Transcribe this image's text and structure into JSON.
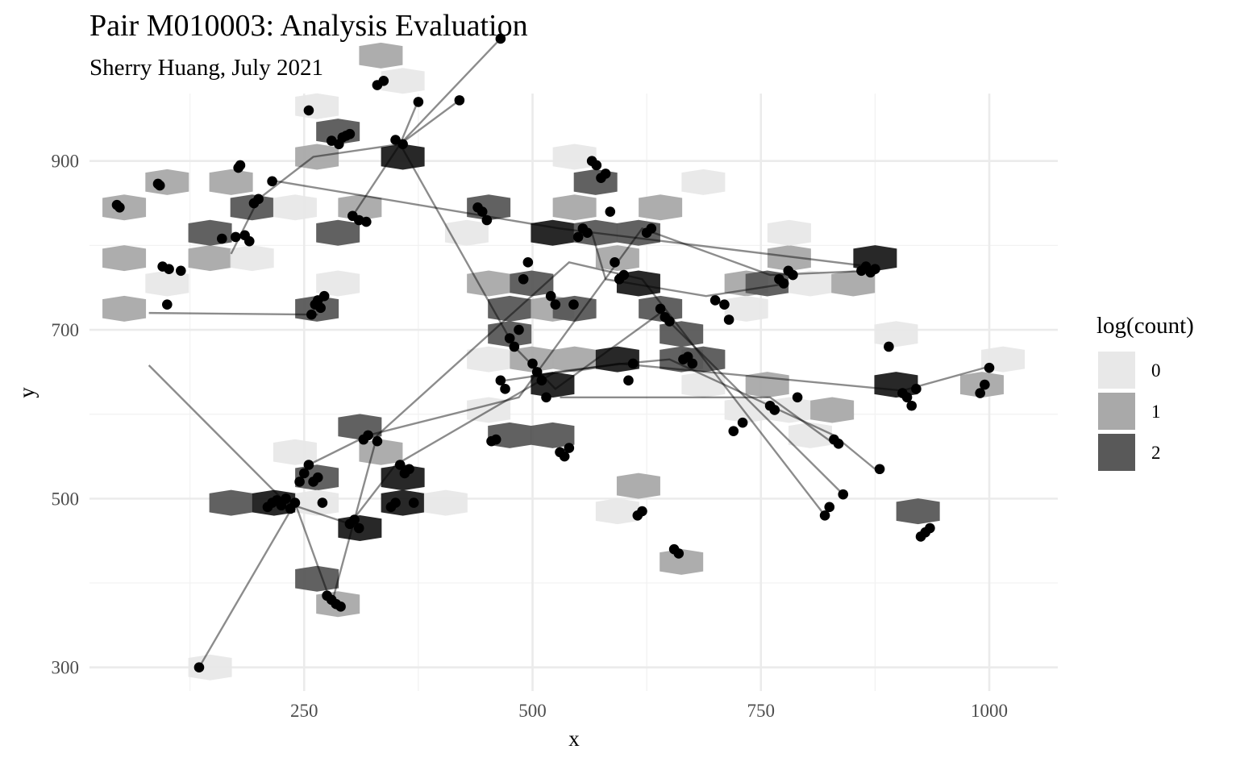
{
  "chart_data": {
    "type": "scatter",
    "title": "Pair M010003: Analysis Evaluation",
    "subtitle": "Sherry Huang, July 2021",
    "xlabel": "x",
    "ylabel": "y",
    "xlim": [
      15,
      1075
    ],
    "ylim": [
      272,
      980
    ],
    "x_ticks": [
      250,
      500,
      750,
      1000
    ],
    "y_ticks": [
      300,
      500,
      700,
      900
    ],
    "grid": true,
    "legend": {
      "title": "log(count)",
      "position": "right",
      "entries": [
        {
          "label": "0",
          "color": "#e8e8e8"
        },
        {
          "label": "1",
          "color": "#a9a9a9"
        },
        {
          "label": "2",
          "color": "#595959"
        }
      ]
    },
    "hexbins": [
      {
        "x": 53,
        "y": 725,
        "level": 1
      },
      {
        "x": 53,
        "y": 785,
        "level": 1
      },
      {
        "x": 53,
        "y": 845,
        "level": 1
      },
      {
        "x": 100,
        "y": 755,
        "level": 0
      },
      {
        "x": 100,
        "y": 875,
        "level": 1
      },
      {
        "x": 147,
        "y": 785,
        "level": 1
      },
      {
        "x": 147,
        "y": 815,
        "level": 2
      },
      {
        "x": 170,
        "y": 875,
        "level": 1
      },
      {
        "x": 193,
        "y": 785,
        "level": 0
      },
      {
        "x": 193,
        "y": 845,
        "level": 2
      },
      {
        "x": 240,
        "y": 845,
        "level": 0
      },
      {
        "x": 147,
        "y": 300,
        "level": 0
      },
      {
        "x": 170,
        "y": 495,
        "level": 2
      },
      {
        "x": 217,
        "y": 495,
        "level": 3
      },
      {
        "x": 240,
        "y": 555,
        "level": 0
      },
      {
        "x": 264,
        "y": 525,
        "level": 2
      },
      {
        "x": 264,
        "y": 495,
        "level": 0
      },
      {
        "x": 264,
        "y": 405,
        "level": 2
      },
      {
        "x": 287,
        "y": 375,
        "level": 1
      },
      {
        "x": 311,
        "y": 465,
        "level": 3
      },
      {
        "x": 311,
        "y": 585,
        "level": 2
      },
      {
        "x": 334,
        "y": 555,
        "level": 1
      },
      {
        "x": 358,
        "y": 495,
        "level": 3
      },
      {
        "x": 358,
        "y": 525,
        "level": 3
      },
      {
        "x": 405,
        "y": 495,
        "level": 0
      },
      {
        "x": 264,
        "y": 725,
        "level": 2
      },
      {
        "x": 287,
        "y": 755,
        "level": 0
      },
      {
        "x": 287,
        "y": 815,
        "level": 2
      },
      {
        "x": 311,
        "y": 845,
        "level": 1
      },
      {
        "x": 264,
        "y": 905,
        "level": 1
      },
      {
        "x": 264,
        "y": 965,
        "level": 0
      },
      {
        "x": 287,
        "y": 935,
        "level": 2
      },
      {
        "x": 334,
        "y": 1025,
        "level": 1
      },
      {
        "x": 358,
        "y": 995,
        "level": 0
      },
      {
        "x": 358,
        "y": 905,
        "level": 3
      },
      {
        "x": 428,
        "y": 815,
        "level": 0
      },
      {
        "x": 452,
        "y": 845,
        "level": 2
      },
      {
        "x": 452,
        "y": 755,
        "level": 1
      },
      {
        "x": 475,
        "y": 725,
        "level": 2
      },
      {
        "x": 475,
        "y": 695,
        "level": 2
      },
      {
        "x": 452,
        "y": 665,
        "level": 0
      },
      {
        "x": 452,
        "y": 605,
        "level": 0
      },
      {
        "x": 475,
        "y": 575,
        "level": 2
      },
      {
        "x": 499,
        "y": 755,
        "level": 2
      },
      {
        "x": 499,
        "y": 665,
        "level": 1
      },
      {
        "x": 522,
        "y": 815,
        "level": 3
      },
      {
        "x": 522,
        "y": 725,
        "level": 1
      },
      {
        "x": 522,
        "y": 635,
        "level": 3
      },
      {
        "x": 522,
        "y": 575,
        "level": 2
      },
      {
        "x": 546,
        "y": 725,
        "level": 2
      },
      {
        "x": 546,
        "y": 665,
        "level": 1
      },
      {
        "x": 546,
        "y": 845,
        "level": 1
      },
      {
        "x": 546,
        "y": 905,
        "level": 0
      },
      {
        "x": 569,
        "y": 815,
        "level": 2
      },
      {
        "x": 569,
        "y": 875,
        "level": 2
      },
      {
        "x": 593,
        "y": 785,
        "level": 1
      },
      {
        "x": 593,
        "y": 665,
        "level": 3
      },
      {
        "x": 593,
        "y": 485,
        "level": 0
      },
      {
        "x": 616,
        "y": 755,
        "level": 3
      },
      {
        "x": 616,
        "y": 815,
        "level": 2
      },
      {
        "x": 616,
        "y": 515,
        "level": 1
      },
      {
        "x": 640,
        "y": 725,
        "level": 2
      },
      {
        "x": 640,
        "y": 845,
        "level": 1
      },
      {
        "x": 663,
        "y": 695,
        "level": 2
      },
      {
        "x": 663,
        "y": 665,
        "level": 2
      },
      {
        "x": 663,
        "y": 425,
        "level": 1
      },
      {
        "x": 687,
        "y": 875,
        "level": 0
      },
      {
        "x": 687,
        "y": 635,
        "level": 0
      },
      {
        "x": 734,
        "y": 755,
        "level": 1
      },
      {
        "x": 734,
        "y": 725,
        "level": 0
      },
      {
        "x": 734,
        "y": 605,
        "level": 0
      },
      {
        "x": 757,
        "y": 755,
        "level": 2
      },
      {
        "x": 757,
        "y": 635,
        "level": 1
      },
      {
        "x": 781,
        "y": 785,
        "level": 1
      },
      {
        "x": 781,
        "y": 605,
        "level": 0
      },
      {
        "x": 804,
        "y": 575,
        "level": 0
      },
      {
        "x": 804,
        "y": 755,
        "level": 0
      },
      {
        "x": 828,
        "y": 605,
        "level": 1
      },
      {
        "x": 851,
        "y": 755,
        "level": 1
      },
      {
        "x": 875,
        "y": 785,
        "level": 3
      },
      {
        "x": 898,
        "y": 695,
        "level": 0
      },
      {
        "x": 898,
        "y": 635,
        "level": 3
      },
      {
        "x": 922,
        "y": 485,
        "level": 2
      },
      {
        "x": 992,
        "y": 635,
        "level": 1
      },
      {
        "x": 1015,
        "y": 665,
        "level": 0
      },
      {
        "x": 781,
        "y": 815,
        "level": 0
      },
      {
        "x": 687,
        "y": 665,
        "level": 2
      }
    ],
    "series": [
      {
        "x": [
          45,
          48,
          90,
          92,
          95,
          100,
          102,
          115,
          160,
          175,
          178,
          180,
          185,
          190,
          195,
          200,
          215,
          255,
          258,
          262,
          265,
          268,
          272,
          280,
          288,
          292,
          296,
          300,
          303,
          310,
          318,
          330,
          337,
          350,
          358,
          375,
          420,
          465
        ],
        "y": [
          848,
          845,
          873,
          871,
          775,
          730,
          772,
          770,
          808,
          810,
          892,
          895,
          812,
          805,
          850,
          855,
          876,
          960,
          718,
          730,
          735,
          726,
          740,
          924,
          920,
          928,
          930,
          932,
          835,
          830,
          828,
          990,
          995,
          925,
          920,
          970,
          972,
          1045
        ]
      },
      {
        "x": [
          135,
          210,
          215,
          220,
          225,
          230,
          235,
          240,
          245,
          250,
          255,
          260,
          265,
          270,
          275,
          280,
          285,
          290,
          300,
          305,
          310,
          315,
          320,
          330,
          345,
          350,
          355,
          360,
          365,
          370
        ],
        "y": [
          300,
          490,
          495,
          498,
          492,
          500,
          488,
          495,
          520,
          530,
          540,
          520,
          525,
          495,
          385,
          380,
          375,
          372,
          470,
          475,
          465,
          570,
          575,
          568,
          490,
          495,
          540,
          530,
          535,
          495
        ]
      },
      {
        "x": [
          440,
          445,
          450,
          455,
          460,
          465,
          470,
          475,
          480,
          485,
          490,
          495,
          500,
          505,
          510,
          515,
          520,
          525,
          530,
          535,
          540,
          545,
          550,
          555,
          560,
          565,
          570,
          575,
          580,
          585,
          590,
          595,
          600,
          605,
          610,
          615,
          620,
          625,
          630
        ],
        "y": [
          845,
          840,
          830,
          568,
          570,
          640,
          630,
          690,
          680,
          700,
          760,
          780,
          660,
          650,
          640,
          620,
          740,
          730,
          555,
          550,
          560,
          730,
          810,
          820,
          815,
          900,
          895,
          880,
          885,
          840,
          780,
          760,
          765,
          640,
          660,
          480,
          485,
          815,
          820
        ]
      },
      {
        "x": [
          640,
          645,
          650,
          655,
          660,
          665,
          670,
          675,
          700,
          710,
          715,
          720,
          730,
          760,
          765,
          770,
          775,
          780,
          785,
          790,
          820,
          825,
          830,
          835,
          840,
          860,
          865,
          870,
          875,
          880,
          890,
          905,
          910,
          915,
          920,
          925,
          930,
          935,
          990,
          995,
          1000
        ],
        "y": [
          725,
          715,
          710,
          440,
          435,
          665,
          668,
          660,
          735,
          730,
          712,
          580,
          590,
          610,
          605,
          760,
          755,
          770,
          765,
          620,
          480,
          490,
          570,
          565,
          505,
          770,
          775,
          768,
          772,
          535,
          680,
          625,
          620,
          610,
          630,
          455,
          460,
          465,
          625,
          635,
          655
        ]
      }
    ],
    "paths": [
      [
        [
          215,
          877
        ],
        [
          530,
          820
        ],
        [
          870,
          775
        ]
      ],
      [
        [
          80,
          720
        ],
        [
          265,
          718
        ]
      ],
      [
        [
          80,
          658
        ],
        [
          230,
          495
        ],
        [
          300,
          470
        ],
        [
          350,
          540
        ],
        [
          525,
          650
        ],
        [
          600,
          660
        ],
        [
          650,
          665
        ],
        [
          830,
          575
        ],
        [
          875,
          535
        ]
      ],
      [
        [
          135,
          300
        ],
        [
          240,
          495
        ],
        [
          280,
          375
        ],
        [
          330,
          575
        ],
        [
          540,
          780
        ],
        [
          620,
          760
        ],
        [
          820,
          480
        ]
      ],
      [
        [
          170,
          790
        ],
        [
          200,
          855
        ],
        [
          260,
          905
        ],
        [
          355,
          920
        ],
        [
          420,
          972
        ]
      ],
      [
        [
          355,
          920
        ],
        [
          465,
          1045
        ]
      ],
      [
        [
          355,
          920
        ],
        [
          375,
          972
        ]
      ],
      [
        [
          300,
          830
        ],
        [
          355,
          920
        ],
        [
          480,
          680
        ],
        [
          525,
          630
        ],
        [
          640,
          720
        ],
        [
          840,
          505
        ]
      ],
      [
        [
          470,
          640
        ],
        [
          595,
          660
        ],
        [
          905,
          628
        ],
        [
          995,
          655
        ]
      ],
      [
        [
          530,
          620
        ],
        [
          760,
          620
        ],
        [
          830,
          565
        ]
      ],
      [
        [
          565,
          815
        ],
        [
          580,
          760
        ],
        [
          690,
          740
        ],
        [
          780,
          755
        ]
      ],
      [
        [
          255,
          540
        ],
        [
          320,
          575
        ],
        [
          485,
          620
        ],
        [
          620,
          820
        ],
        [
          760,
          765
        ],
        [
          870,
          770
        ]
      ]
    ]
  }
}
